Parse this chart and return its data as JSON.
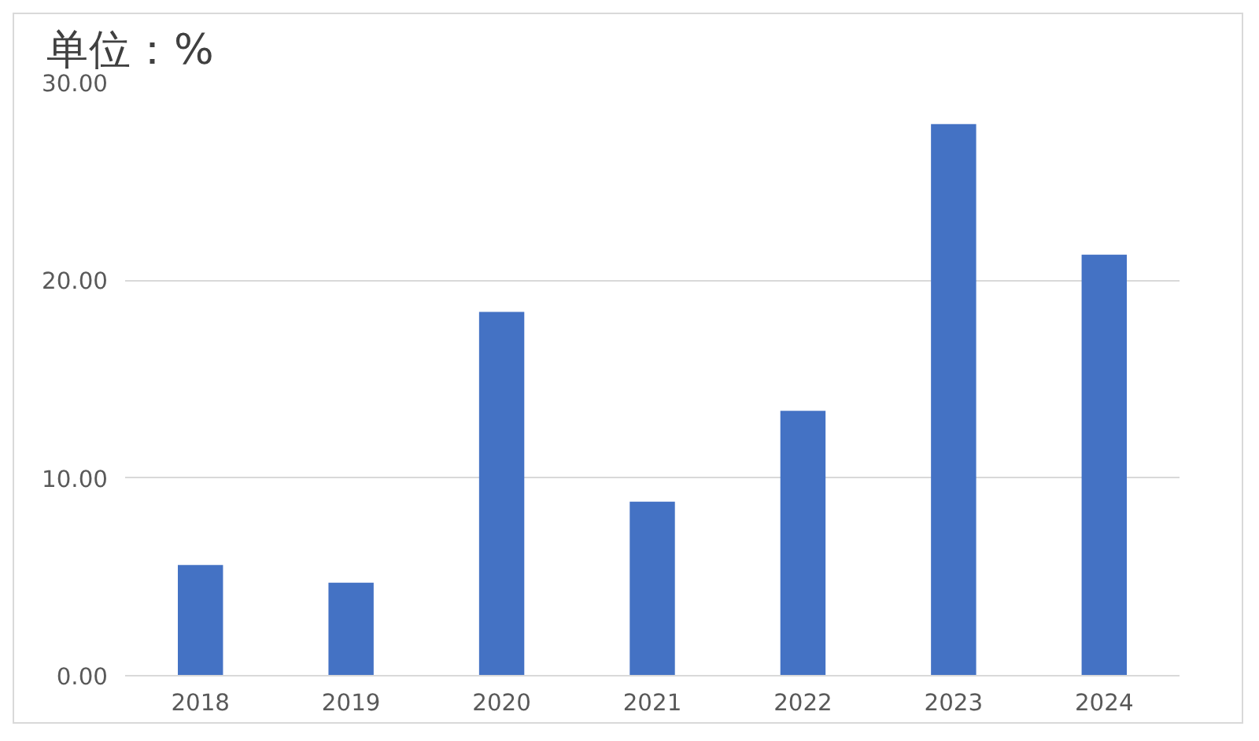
{
  "chart_data": {
    "type": "bar",
    "title": "单位：%",
    "categories": [
      "2018",
      "2019",
      "2020",
      "2021",
      "2022",
      "2023",
      "2024"
    ],
    "values": [
      5.6,
      4.7,
      18.4,
      8.8,
      13.4,
      27.9,
      21.3
    ],
    "color": "#4472c4",
    "ylim": [
      0,
      30
    ],
    "yticks": [
      {
        "value": 0,
        "label": "0.00"
      },
      {
        "value": 10,
        "label": "10.00"
      },
      {
        "value": 20,
        "label": "20.00"
      },
      {
        "value": 30,
        "label": "30.00"
      }
    ],
    "grid": "y"
  }
}
